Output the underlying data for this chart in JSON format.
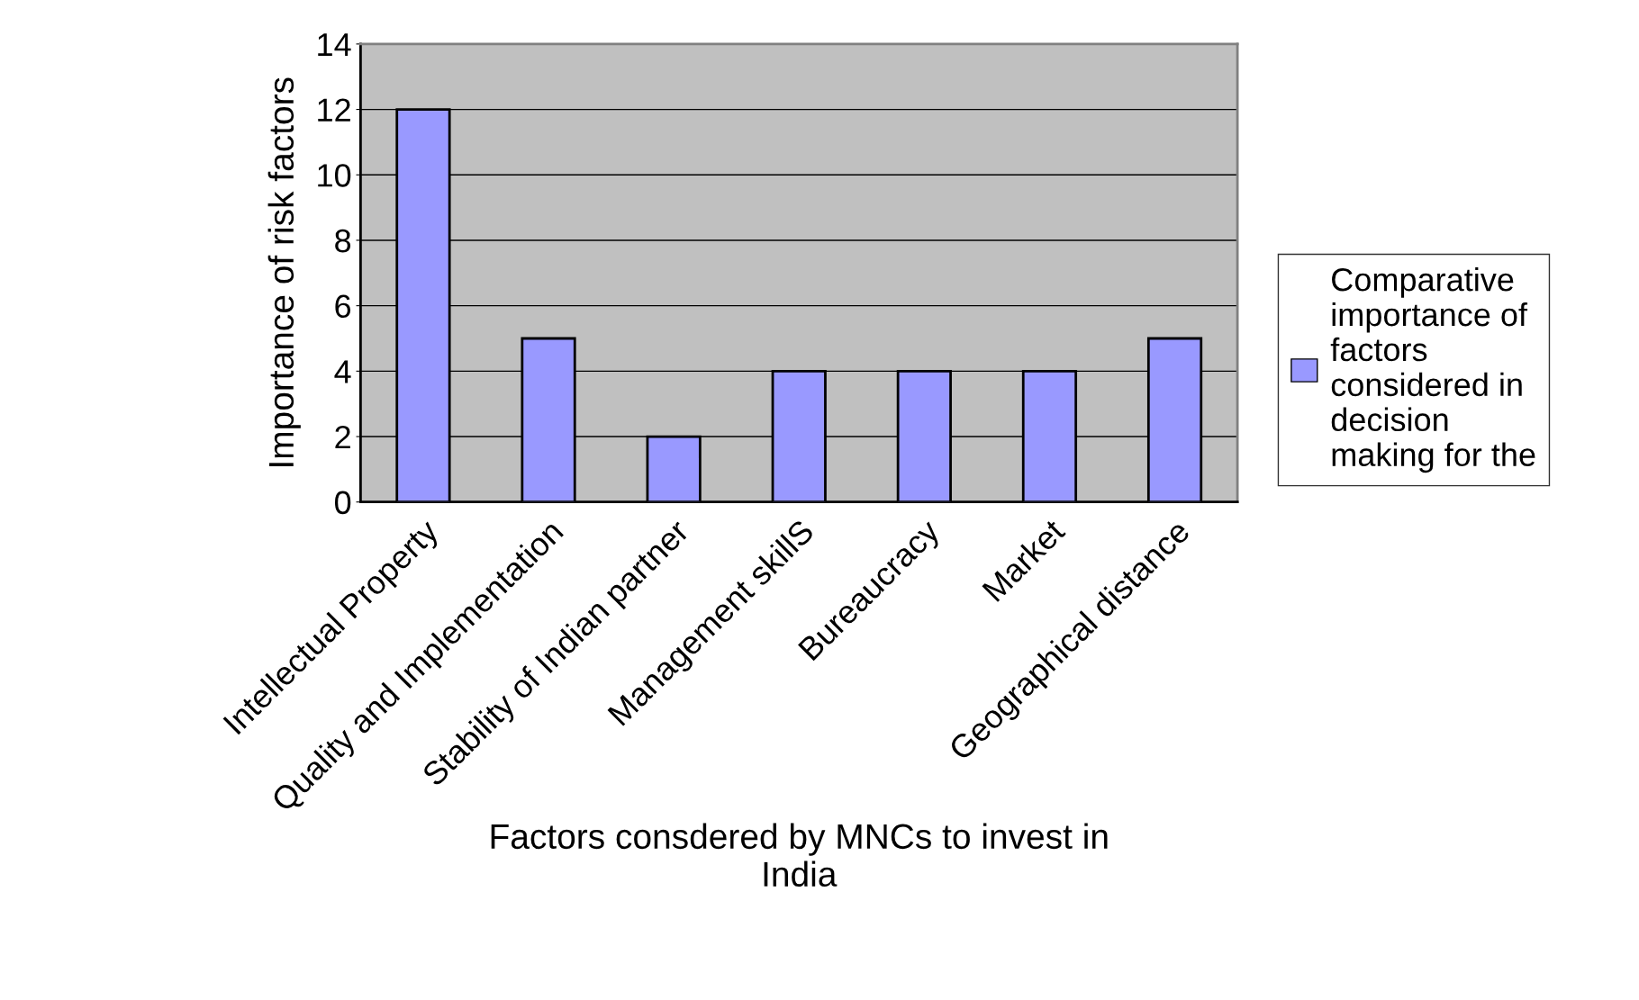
{
  "chart_data": {
    "type": "bar",
    "xlabel": "Factors consdered by MNCs to invest in\nIndia",
    "ylabel": "Importance of risk factors",
    "categories": [
      "Intellectual Property",
      "Quality and Implementation",
      "Stability of Indian partner",
      "Management skillS",
      "Bureaucracy",
      "Market",
      "Geographical distance"
    ],
    "series": [
      {
        "name": "Comparative\nimportance of\nfactors\nconsidered in\ndecision\nmaking for the",
        "color": "#9999ff",
        "values": [
          12,
          5,
          2,
          4,
          4,
          4,
          5
        ]
      }
    ],
    "ylim": [
      0,
      14
    ],
    "yticks": [
      0,
      2,
      4,
      6,
      8,
      10,
      12,
      14
    ],
    "grid": "y",
    "legend": "right"
  }
}
